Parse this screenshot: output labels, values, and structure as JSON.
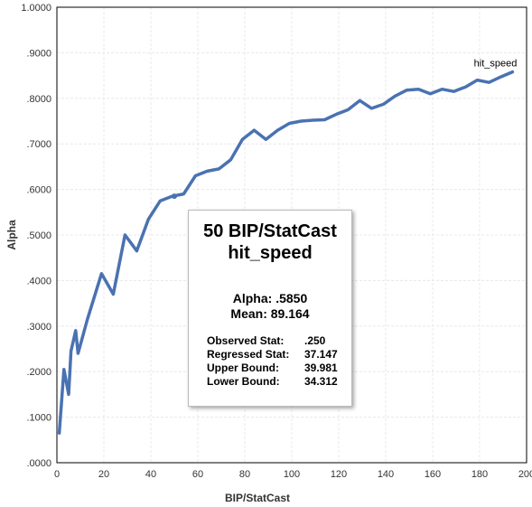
{
  "chart_data": {
    "type": "line",
    "xlabel": "BIP/StatCast",
    "ylabel": "Alpha",
    "xlim": [
      0,
      200
    ],
    "ylim": [
      0,
      1
    ],
    "x_ticks": [
      "0",
      "20",
      "40",
      "60",
      "80",
      "100",
      "120",
      "140",
      "160",
      "180",
      "200"
    ],
    "y_ticks": [
      ".0000",
      ".1000",
      ".2000",
      ".3000",
      ".4000",
      ".5000",
      ".6000",
      ".7000",
      ".8000",
      ".9000",
      "1.0000"
    ],
    "grid": true,
    "series": [
      {
        "name": "hit_speed",
        "color": "#4a72b2",
        "points": [
          [
            1,
            0.065
          ],
          [
            3,
            0.205
          ],
          [
            5,
            0.15
          ],
          [
            6,
            0.245
          ],
          [
            8,
            0.29
          ],
          [
            9,
            0.24
          ],
          [
            13,
            0.315
          ],
          [
            19,
            0.415
          ],
          [
            24,
            0.37
          ],
          [
            29,
            0.5
          ],
          [
            34,
            0.465
          ],
          [
            39,
            0.535
          ],
          [
            44,
            0.575
          ],
          [
            49,
            0.585
          ],
          [
            54,
            0.59
          ],
          [
            59,
            0.63
          ],
          [
            64,
            0.64
          ],
          [
            69,
            0.645
          ],
          [
            74,
            0.665
          ],
          [
            79,
            0.71
          ],
          [
            84,
            0.73
          ],
          [
            89,
            0.71
          ],
          [
            94,
            0.73
          ],
          [
            99,
            0.745
          ],
          [
            104,
            0.75
          ],
          [
            109,
            0.752
          ],
          [
            114,
            0.753
          ],
          [
            119,
            0.765
          ],
          [
            124,
            0.775
          ],
          [
            129,
            0.795
          ],
          [
            134,
            0.778
          ],
          [
            139,
            0.787
          ],
          [
            144,
            0.805
          ],
          [
            149,
            0.818
          ],
          [
            154,
            0.82
          ],
          [
            159,
            0.81
          ],
          [
            164,
            0.82
          ],
          [
            169,
            0.815
          ],
          [
            174,
            0.825
          ],
          [
            179,
            0.84
          ],
          [
            184,
            0.835
          ],
          [
            189,
            0.847
          ],
          [
            194,
            0.858
          ]
        ],
        "marker": [
          50,
          0.585
        ]
      }
    ]
  },
  "info_box": {
    "title_line1": "50 BIP/StatCast",
    "title_line2": "hit_speed",
    "alpha_label": "Alpha",
    "alpha_value": ": .5850",
    "mean_text": "Mean: 89.164",
    "stats": [
      {
        "label": "Observed Stat:",
        "value": ".250"
      },
      {
        "label": "Regressed Stat:",
        "value": "37.147"
      },
      {
        "label": "Upper Bound:",
        "value": "39.981"
      },
      {
        "label": "Lower Bound:",
        "value": "34.312"
      }
    ]
  }
}
